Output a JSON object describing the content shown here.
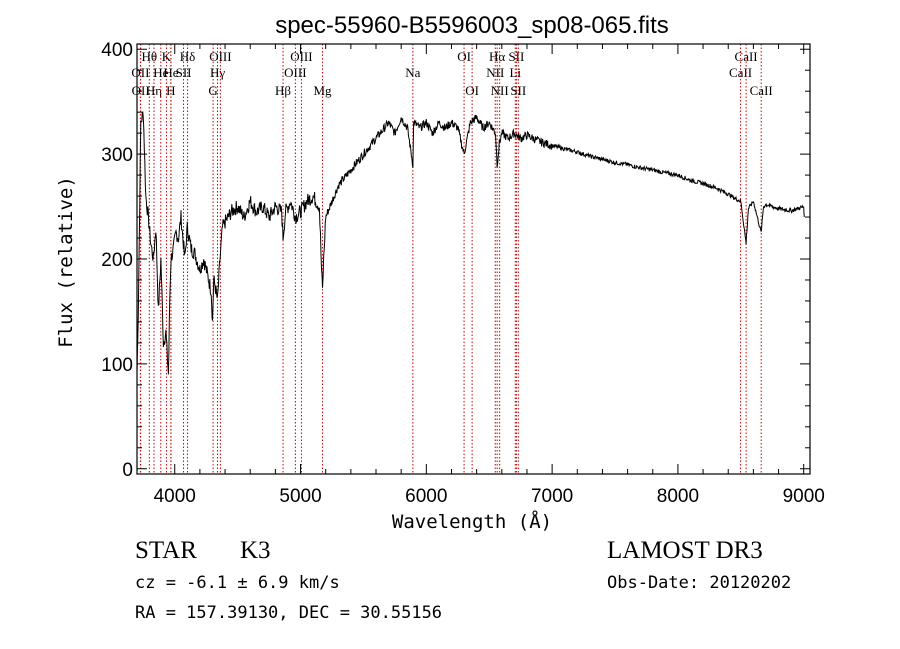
{
  "chart_data": {
    "type": "line",
    "title": "spec-55960-B5596003_sp08-065.fits",
    "xlabel": "Wavelength (Å)",
    "ylabel": "Flux (relative)",
    "xlim": [
      3700,
      9050
    ],
    "ylim": [
      -5,
      405
    ],
    "xticks": [
      4000,
      5000,
      6000,
      7000,
      8000,
      9000
    ],
    "yticks": [
      0,
      100,
      200,
      300,
      400
    ],
    "grid": false,
    "line_color": "#000000",
    "marker_color": "#cc0000",
    "series": [
      {
        "x": [
          3700,
          3710,
          3730,
          3750,
          3770,
          3790,
          3810,
          3830,
          3850,
          3870,
          3890,
          3910,
          3930,
          3950,
          3960,
          3970,
          3990,
          4010,
          4030,
          4050,
          4080,
          4100,
          4130,
          4160,
          4200,
          4230,
          4260,
          4290,
          4300,
          4310,
          4320,
          4340,
          4360,
          4380,
          4400,
          4450,
          4500,
          4550,
          4600,
          4650,
          4700,
          4750,
          4800,
          4850,
          4861,
          4880,
          4920,
          4960,
          5000,
          5050,
          5100,
          5150,
          5167,
          5175,
          5184,
          5200,
          5250,
          5300,
          5400,
          5500,
          5600,
          5700,
          5750,
          5800,
          5850,
          5893,
          5900,
          5950,
          6000,
          6050,
          6100,
          6150,
          6200,
          6250,
          6300,
          6350,
          6400,
          6450,
          6500,
          6550,
          6563,
          6580,
          6600,
          6650,
          6700,
          6750,
          6800,
          6900,
          7000,
          7100,
          7200,
          7300,
          7400,
          7500,
          7600,
          7700,
          7800,
          7900,
          8000,
          8100,
          8200,
          8300,
          8400,
          8450,
          8500,
          8542,
          8560,
          8600,
          8662,
          8680,
          8700,
          8750,
          8800,
          8850,
          8900,
          8950,
          9000,
          9005
        ],
        "y": [
          90,
          150,
          330,
          340,
          260,
          240,
          215,
          200,
          230,
          150,
          200,
          120,
          130,
          90,
          160,
          200,
          210,
          225,
          220,
          240,
          200,
          230,
          210,
          205,
          190,
          200,
          185,
          170,
          140,
          180,
          175,
          160,
          200,
          230,
          235,
          245,
          250,
          240,
          255,
          245,
          250,
          240,
          250,
          245,
          220,
          245,
          255,
          240,
          245,
          255,
          260,
          250,
          190,
          170,
          200,
          240,
          255,
          270,
          285,
          300,
          315,
          330,
          320,
          335,
          325,
          290,
          330,
          325,
          330,
          320,
          330,
          325,
          330,
          325,
          300,
          330,
          335,
          325,
          330,
          320,
          290,
          310,
          320,
          315,
          320,
          315,
          318,
          312,
          308,
          305,
          302,
          298,
          295,
          292,
          290,
          287,
          285,
          282,
          280,
          275,
          272,
          268,
          262,
          258,
          255,
          215,
          248,
          255,
          225,
          250,
          252,
          250,
          248,
          247,
          246,
          248,
          250,
          240
        ]
      }
    ],
    "lines": [
      {
        "label": "OII",
        "x": 3727,
        "row": 1
      },
      {
        "label": "OII",
        "x": 3729,
        "row": 2
      },
      {
        "label": "Hθ",
        "x": 3798,
        "row": 0
      },
      {
        "label": "Hη",
        "x": 3835,
        "row": 2
      },
      {
        "label": "He",
        "x": 3889,
        "row": 1
      },
      {
        "label": "K",
        "x": 3934,
        "row": 0
      },
      {
        "label": "H",
        "x": 3969,
        "row": 2
      },
      {
        "label": "He",
        "x": 3970,
        "row": 1
      },
      {
        "label": "SII",
        "x": 4070,
        "row": 1
      },
      {
        "label": "Hδ",
        "x": 4102,
        "row": 0
      },
      {
        "label": "G",
        "x": 4305,
        "row": 2
      },
      {
        "label": "Hγ",
        "x": 4340,
        "row": 1
      },
      {
        "label": "OIII",
        "x": 4363,
        "row": 0
      },
      {
        "label": "Hβ",
        "x": 4861,
        "row": 2
      },
      {
        "label": "OIII",
        "x": 4959,
        "row": 1
      },
      {
        "label": "OIII",
        "x": 5007,
        "row": 0
      },
      {
        "label": "Mg",
        "x": 5175,
        "row": 2
      },
      {
        "label": "Na",
        "x": 5893,
        "row": 1
      },
      {
        "label": "OI",
        "x": 6300,
        "row": 0
      },
      {
        "label": "OI",
        "x": 6364,
        "row": 2
      },
      {
        "label": "NII",
        "x": 6548,
        "row": 1
      },
      {
        "label": "Hα",
        "x": 6563,
        "row": 0
      },
      {
        "label": "NII",
        "x": 6583,
        "row": 2
      },
      {
        "label": "Li",
        "x": 6707,
        "row": 1
      },
      {
        "label": "SII",
        "x": 6716,
        "row": 0
      },
      {
        "label": "SII",
        "x": 6731,
        "row": 2
      },
      {
        "label": "CaII",
        "x": 8498,
        "row": 1
      },
      {
        "label": "CaII",
        "x": 8542,
        "row": 0
      },
      {
        "label": "CaII",
        "x": 8662,
        "row": 2
      }
    ]
  },
  "info": {
    "class": "STAR",
    "subclass": "K3",
    "survey": "LAMOST DR3",
    "cz": "cz = -6.1 ± 6.9 km/s",
    "obs_date": "Obs-Date: 20120202",
    "coords": "RA = 157.39130, DEC =  30.55156"
  }
}
